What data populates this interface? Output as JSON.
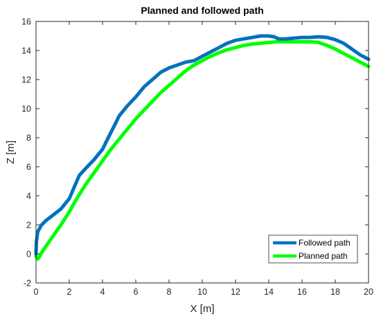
{
  "chart_data": {
    "type": "line",
    "title": "Planned and followed path",
    "xlabel": "X [m]",
    "ylabel": "Z [m]",
    "xlim": [
      0,
      20
    ],
    "ylim": [
      -2,
      16
    ],
    "xticks": [
      0,
      2,
      4,
      6,
      8,
      10,
      12,
      14,
      16,
      18,
      20
    ],
    "yticks": [
      -2,
      0,
      2,
      4,
      6,
      8,
      10,
      12,
      14,
      16
    ],
    "grid": false,
    "legend_position": "bottom-right",
    "series": [
      {
        "name": "Followed path",
        "color": "#0072BD",
        "x": [
          0.0,
          0.02,
          0.1,
          0.3,
          0.6,
          1.0,
          1.5,
          2.0,
          2.3,
          2.6,
          3.0,
          3.5,
          4.0,
          4.3,
          4.7,
          5.0,
          5.5,
          6.0,
          6.5,
          7.0,
          7.5,
          8.0,
          8.5,
          9.0,
          9.5,
          10.0,
          10.5,
          11.0,
          11.5,
          12.0,
          12.5,
          13.0,
          13.5,
          14.0,
          14.3,
          14.6,
          15.0,
          15.5,
          16.0,
          16.5,
          17.0,
          17.5,
          18.0,
          18.5,
          19.0,
          19.5,
          20.0
        ],
        "y": [
          0.0,
          0.8,
          1.5,
          1.95,
          2.3,
          2.65,
          3.1,
          3.8,
          4.6,
          5.4,
          5.9,
          6.5,
          7.2,
          7.9,
          8.8,
          9.5,
          10.2,
          10.8,
          11.5,
          12.0,
          12.5,
          12.8,
          13.0,
          13.2,
          13.3,
          13.6,
          13.9,
          14.2,
          14.5,
          14.7,
          14.8,
          14.9,
          15.0,
          15.0,
          14.95,
          14.8,
          14.8,
          14.85,
          14.9,
          14.9,
          14.95,
          14.9,
          14.75,
          14.5,
          14.1,
          13.7,
          13.4
        ]
      },
      {
        "name": "Planned path",
        "color": "#00FF00",
        "x": [
          0.0,
          0.1,
          0.2,
          0.4,
          0.7,
          1.0,
          1.5,
          2.0,
          2.5,
          3.0,
          3.5,
          4.0,
          4.5,
          5.0,
          5.5,
          6.0,
          6.5,
          7.0,
          7.5,
          8.0,
          8.5,
          9.0,
          9.5,
          10.0,
          10.5,
          11.0,
          11.5,
          12.0,
          12.5,
          13.0,
          13.5,
          14.0,
          14.5,
          15.0,
          15.5,
          16.0,
          16.5,
          17.0,
          17.5,
          18.0,
          18.5,
          19.0,
          19.5,
          20.0
        ],
        "y": [
          -0.15,
          -0.35,
          -0.2,
          0.2,
          0.7,
          1.2,
          2.0,
          2.9,
          3.9,
          4.8,
          5.6,
          6.4,
          7.2,
          7.9,
          8.6,
          9.3,
          9.9,
          10.5,
          11.1,
          11.6,
          12.1,
          12.6,
          13.0,
          13.3,
          13.6,
          13.85,
          14.05,
          14.2,
          14.35,
          14.45,
          14.5,
          14.55,
          14.6,
          14.6,
          14.6,
          14.6,
          14.6,
          14.55,
          14.35,
          14.1,
          13.8,
          13.5,
          13.2,
          12.9
        ]
      }
    ]
  }
}
